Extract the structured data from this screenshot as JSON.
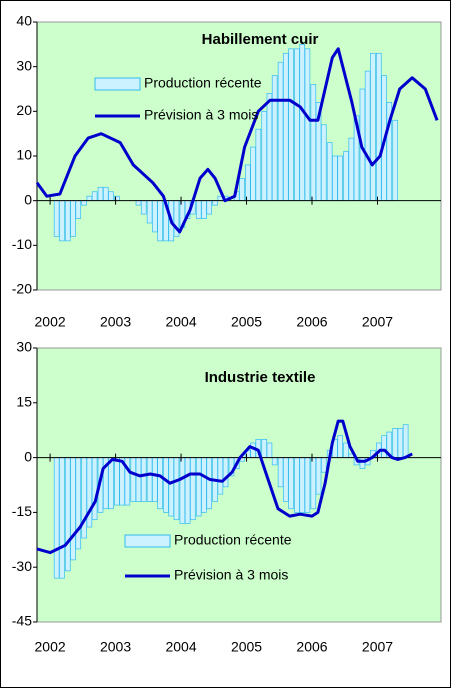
{
  "chart_data": [
    {
      "type": "combo",
      "title": "Habillement cuir",
      "xlim": [
        2001.8,
        2007.97
      ],
      "xticks": [
        2002,
        2003,
        2004,
        2005,
        2006,
        2007
      ],
      "ylim": [
        -20,
        40
      ],
      "yticks": [
        40,
        30,
        20,
        10,
        0,
        -10,
        -20
      ],
      "series": [
        {
          "name": "Production récente",
          "type": "bar",
          "color": "#ccf2ff",
          "stroke": "#33bbee",
          "x": [
            2002.1,
            2002.18,
            2002.27,
            2002.35,
            2002.43,
            2002.52,
            2002.6,
            2002.68,
            2002.77,
            2002.85,
            2002.93,
            2003.02,
            2003.1,
            2003.18,
            2003.27,
            2003.35,
            2003.43,
            2003.52,
            2003.6,
            2003.68,
            2003.77,
            2003.85,
            2003.93,
            2004.02,
            2004.1,
            2004.18,
            2004.27,
            2004.35,
            2004.43,
            2004.52,
            2004.6,
            2004.68,
            2004.77,
            2004.85,
            2004.93,
            2005.02,
            2005.1,
            2005.18,
            2005.27,
            2005.35,
            2005.43,
            2005.52,
            2005.6,
            2005.68,
            2005.77,
            2005.85,
            2005.93,
            2006.02,
            2006.1,
            2006.18,
            2006.27,
            2006.35,
            2006.43,
            2006.52,
            2006.6,
            2006.68,
            2006.77,
            2006.85,
            2006.93,
            2007.02,
            2007.1,
            2007.18,
            2007.27
          ],
          "values": [
            -8,
            -9,
            -9,
            -8,
            -4,
            -1,
            1,
            2,
            3,
            3,
            2,
            1,
            0,
            0,
            0,
            -1,
            -3,
            -5,
            -7,
            -9,
            -9,
            -9,
            -8,
            -6,
            -4,
            -3,
            -4,
            -4,
            -3,
            -1,
            1,
            1,
            0,
            2,
            5,
            8,
            12,
            16,
            20,
            24,
            28,
            31,
            33,
            34,
            34,
            35,
            34,
            26,
            22,
            17,
            13,
            10,
            10,
            11,
            14,
            19,
            25,
            29,
            33,
            33,
            28,
            22,
            18
          ]
        },
        {
          "name": "Prévision à 3 mois",
          "type": "line",
          "color": "#0000cc",
          "x": [
            2001.8,
            2001.95,
            2002.15,
            2002.38,
            2002.58,
            2002.78,
            2003.07,
            2003.27,
            2003.57,
            2003.73,
            2003.86,
            2003.98,
            2004.14,
            2004.29,
            2004.41,
            2004.52,
            2004.67,
            2004.82,
            2004.97,
            2005.18,
            2005.36,
            2005.66,
            2005.82,
            2005.97,
            2006.09,
            2006.31,
            2006.4,
            2006.61,
            2006.76,
            2006.92,
            2007.04,
            2007.19,
            2007.34,
            2007.53,
            2007.73,
            2007.91
          ],
          "values": [
            4,
            1,
            1.5,
            10,
            14,
            15,
            13,
            8,
            4,
            1,
            -5,
            -7,
            -2,
            5,
            7,
            5,
            0,
            1,
            12,
            20,
            22.5,
            22.5,
            21,
            18,
            18,
            32,
            34,
            22,
            12,
            8,
            10,
            18,
            25,
            27.5,
            25,
            18
          ]
        }
      ]
    },
    {
      "type": "combo",
      "title": "Industrie textile",
      "xlim": [
        2001.8,
        2007.97
      ],
      "xticks": [
        2002,
        2003,
        2004,
        2005,
        2006,
        2007
      ],
      "ylim": [
        -45,
        30
      ],
      "yticks": [
        30,
        15,
        0,
        -15,
        -30,
        -45
      ],
      "series": [
        {
          "name": "Production récente",
          "type": "bar",
          "color": "#ccf2ff",
          "stroke": "#33bbee",
          "x": [
            2002.1,
            2002.18,
            2002.27,
            2002.35,
            2002.43,
            2002.52,
            2002.6,
            2002.68,
            2002.77,
            2002.85,
            2002.93,
            2003.02,
            2003.1,
            2003.18,
            2003.27,
            2003.35,
            2003.43,
            2003.52,
            2003.6,
            2003.68,
            2003.77,
            2003.85,
            2003.93,
            2004.02,
            2004.1,
            2004.18,
            2004.27,
            2004.35,
            2004.43,
            2004.52,
            2004.6,
            2004.68,
            2004.77,
            2004.85,
            2004.93,
            2005.02,
            2005.1,
            2005.18,
            2005.27,
            2005.35,
            2005.43,
            2005.52,
            2005.6,
            2005.68,
            2005.77,
            2005.85,
            2005.93,
            2006.02,
            2006.1,
            2006.18,
            2006.27,
            2006.35,
            2006.43,
            2006.52,
            2006.6,
            2006.68,
            2006.77,
            2006.85,
            2006.93,
            2007.02,
            2007.1,
            2007.18,
            2007.27,
            2007.35,
            2007.43
          ],
          "values": [
            -33,
            -33,
            -31,
            -28,
            -25,
            -22,
            -19,
            -17,
            -15,
            -14,
            -14,
            -13,
            -13,
            -13,
            -12,
            -12,
            -12,
            -12,
            -12,
            -14,
            -15,
            -16,
            -17,
            -18,
            -18,
            -17,
            -16,
            -15,
            -14,
            -12,
            -10,
            -8,
            -5,
            -3,
            -1,
            2,
            4,
            5,
            5,
            4,
            -2,
            -8,
            -12,
            -14,
            -15,
            -15,
            -15,
            -14,
            -10,
            -4,
            2,
            5,
            6,
            4,
            1,
            -2,
            -3,
            -2,
            2,
            4,
            6,
            7,
            8,
            8,
            9
          ]
        },
        {
          "name": "Prévision à 3 mois",
          "type": "line",
          "color": "#0000cc",
          "x": [
            2001.8,
            2002.0,
            2002.23,
            2002.46,
            2002.69,
            2002.81,
            2002.95,
            2003.1,
            2003.22,
            2003.37,
            2003.53,
            2003.68,
            2003.83,
            2003.98,
            2004.14,
            2004.29,
            2004.44,
            2004.63,
            2004.78,
            2004.9,
            2005.05,
            2005.18,
            2005.33,
            2005.48,
            2005.66,
            2005.82,
            2006.0,
            2006.09,
            2006.2,
            2006.31,
            2006.4,
            2006.47,
            2006.58,
            2006.7,
            2006.81,
            2006.92,
            2007.04,
            2007.11,
            2007.22,
            2007.31,
            2007.42,
            2007.53
          ],
          "values": [
            -25,
            -26,
            -24,
            -19,
            -12,
            -3,
            -0.5,
            -1,
            -4,
            -5,
            -4.5,
            -5,
            -7,
            -6,
            -4.5,
            -4.5,
            -6,
            -6.5,
            -4,
            0,
            3,
            2,
            -6,
            -14,
            -16,
            -15.5,
            -16,
            -15,
            -7,
            4,
            10,
            10,
            3,
            -1,
            -1,
            0,
            2,
            2,
            0,
            -0.5,
            0,
            1
          ]
        }
      ]
    }
  ]
}
